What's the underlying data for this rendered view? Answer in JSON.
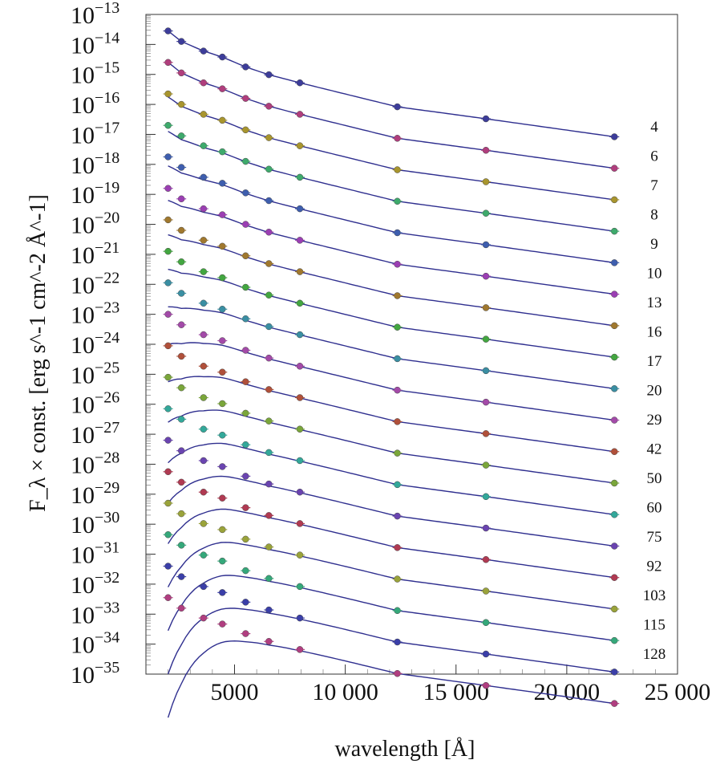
{
  "chart_data": {
    "type": "scatter",
    "title": "",
    "xlabel": "wavelength [Å]",
    "ylabel": "F_λ × const. [erg s^-1 cm^-2 Å^-1]",
    "xlim": [
      1000,
      25000
    ],
    "ylim_exponent": [
      -35,
      -13
    ],
    "y_scale": "log",
    "x_ticks": [
      {
        "value": 5000,
        "label": "5000"
      },
      {
        "value": 10000,
        "label": "10 000"
      },
      {
        "value": 15000,
        "label": "15 000"
      },
      {
        "value": 20000,
        "label": "20 000"
      },
      {
        "value": 25000,
        "label": "25 000"
      }
    ],
    "y_tick_exponents": [
      -13,
      -14,
      -15,
      -16,
      -17,
      -18,
      -19,
      -20,
      -21,
      -22,
      -23,
      -24,
      -25,
      -26,
      -27,
      -28,
      -29,
      -30,
      -31,
      -32,
      -33,
      -34,
      -35
    ],
    "y_tick_base": "10",
    "grid": false,
    "wavelengths": [
      2000,
      2600,
      3600,
      4450,
      5500,
      6550,
      7950,
      12350,
      16350,
      22150
    ],
    "line_color": "#2f2f8f",
    "series": [
      {
        "name": "4",
        "color": "#3d3d9a",
        "log_flux": [
          -13.55,
          -13.9,
          -14.22,
          -14.42,
          -14.75,
          -15.01,
          -15.28,
          -16.08,
          -16.48,
          -17.08
        ],
        "model_rise": 0.0
      },
      {
        "name": "6",
        "color": "#b03e7d",
        "log_flux": [
          -14.6,
          -14.95,
          -15.28,
          -15.48,
          -15.8,
          -16.06,
          -16.33,
          -17.13,
          -17.53,
          -18.13
        ],
        "model_rise": 0.0
      },
      {
        "name": "7",
        "color": "#a8952e",
        "log_flux": [
          -15.65,
          -16.0,
          -16.33,
          -16.53,
          -16.85,
          -17.11,
          -17.38,
          -18.18,
          -18.58,
          -19.18
        ],
        "model_rise": 0.1
      },
      {
        "name": "8",
        "color": "#3eaa6c",
        "log_flux": [
          -16.7,
          -17.05,
          -17.38,
          -17.58,
          -17.9,
          -18.16,
          -18.43,
          -19.23,
          -19.63,
          -20.23
        ],
        "model_rise": 0.2
      },
      {
        "name": "9",
        "color": "#3e5eae",
        "log_flux": [
          -17.75,
          -18.1,
          -18.43,
          -18.63,
          -18.95,
          -19.21,
          -19.48,
          -20.28,
          -20.68,
          -21.28
        ],
        "model_rise": 0.3
      },
      {
        "name": "10",
        "color": "#9b3fb3",
        "log_flux": [
          -18.8,
          -19.15,
          -19.48,
          -19.68,
          -20.0,
          -20.26,
          -20.53,
          -21.33,
          -21.73,
          -22.33
        ],
        "model_rise": 0.4
      },
      {
        "name": "13",
        "color": "#a0782e",
        "log_flux": [
          -19.85,
          -20.2,
          -20.53,
          -20.73,
          -21.05,
          -21.31,
          -21.58,
          -22.38,
          -22.78,
          -23.38
        ],
        "model_rise": 0.5
      },
      {
        "name": "16",
        "color": "#43a640",
        "log_flux": [
          -20.9,
          -21.25,
          -21.58,
          -21.78,
          -22.1,
          -22.36,
          -22.63,
          -23.43,
          -23.83,
          -24.43
        ],
        "model_rise": 0.6
      },
      {
        "name": "17",
        "color": "#3a8fa3",
        "log_flux": [
          -21.95,
          -22.3,
          -22.63,
          -22.83,
          -23.15,
          -23.41,
          -23.68,
          -24.48,
          -24.88,
          -25.48
        ],
        "model_rise": 0.8
      },
      {
        "name": "20",
        "color": "#a34aa8",
        "log_flux": [
          -23.0,
          -23.35,
          -23.68,
          -23.88,
          -24.2,
          -24.46,
          -24.73,
          -25.53,
          -25.93,
          -26.53
        ],
        "model_rise": 1.0
      },
      {
        "name": "29",
        "color": "#b0503a",
        "log_flux": [
          -24.05,
          -24.4,
          -24.73,
          -24.93,
          -25.25,
          -25.51,
          -25.78,
          -26.58,
          -26.98,
          -27.58
        ],
        "model_rise": 1.2
      },
      {
        "name": "42",
        "color": "#7aa63a",
        "log_flux": [
          -25.1,
          -25.45,
          -25.78,
          -25.98,
          -26.3,
          -26.56,
          -26.83,
          -27.63,
          -28.03,
          -28.63
        ],
        "model_rise": 1.5
      },
      {
        "name": "50",
        "color": "#33a89a",
        "log_flux": [
          -26.15,
          -26.5,
          -26.83,
          -27.03,
          -27.35,
          -27.61,
          -27.88,
          -28.68,
          -29.08,
          -29.68
        ],
        "model_rise": 1.8
      },
      {
        "name": "60",
        "color": "#6a44b0",
        "log_flux": [
          -27.2,
          -27.55,
          -27.88,
          -28.08,
          -28.4,
          -28.66,
          -28.93,
          -29.73,
          -30.13,
          -30.73
        ],
        "model_rise": 2.1
      },
      {
        "name": "75",
        "color": "#b03a52",
        "log_flux": [
          -28.25,
          -28.6,
          -28.93,
          -29.13,
          -29.45,
          -29.71,
          -29.98,
          -30.78,
          -31.18,
          -31.78
        ],
        "model_rise": 2.4
      },
      {
        "name": "92",
        "color": "#9aa33a",
        "log_flux": [
          -29.3,
          -29.65,
          -29.98,
          -30.18,
          -30.5,
          -30.76,
          -31.03,
          -31.83,
          -32.23,
          -32.83
        ],
        "model_rise": 2.8
      },
      {
        "name": "103",
        "color": "#35a87a",
        "log_flux": [
          -30.35,
          -30.7,
          -31.03,
          -31.23,
          -31.55,
          -31.81,
          -32.08,
          -32.88,
          -33.28,
          -33.88
        ],
        "model_rise": 3.2
      },
      {
        "name": "115",
        "color": "#3b3fa8",
        "log_flux": [
          -31.4,
          -31.75,
          -32.08,
          -32.28,
          -32.6,
          -32.86,
          -33.13,
          -33.93,
          -34.33,
          -34.93
        ],
        "model_rise": 3.6
      },
      {
        "name": "128",
        "color": "#b03e80",
        "log_flux": [
          -32.45,
          -32.8,
          -33.13,
          -33.33,
          -33.65,
          -33.91,
          -34.18,
          -34.98,
          -35.38,
          -35.98
        ],
        "model_rise": 4.0
      }
    ]
  }
}
